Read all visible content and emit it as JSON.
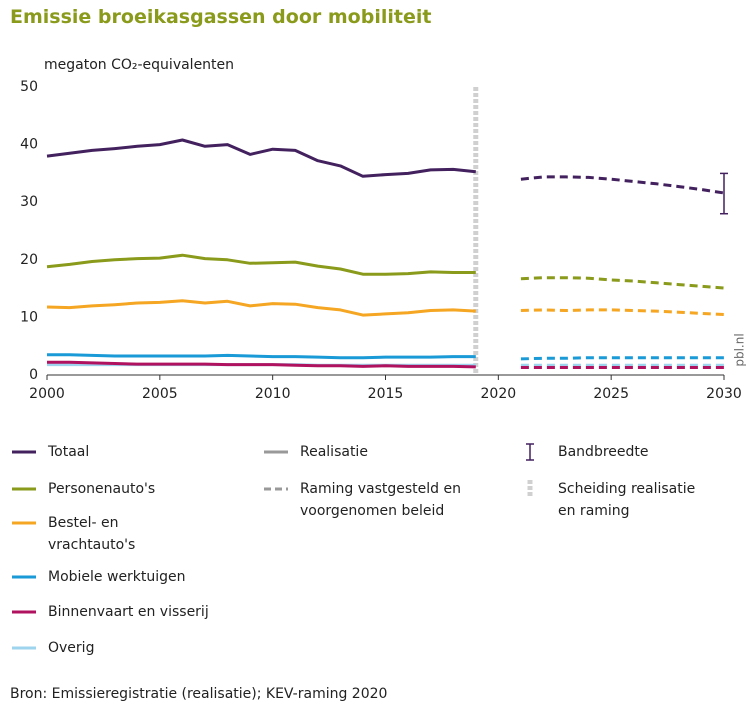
{
  "chart_data": {
    "type": "line",
    "title": "Emissie broeikasgassen door mobiliteit",
    "y_label": "megaton CO₂-equivalenten",
    "source": "Bron: Emissieregistratie (realisatie); KEV-raming 2020",
    "watermark": "pbl.nl",
    "x": [
      2000,
      2001,
      2002,
      2003,
      2004,
      2005,
      2006,
      2007,
      2008,
      2009,
      2010,
      2011,
      2012,
      2013,
      2014,
      2015,
      2016,
      2017,
      2018,
      2019,
      2020,
      2021,
      2022,
      2023,
      2024,
      2025,
      2026,
      2027,
      2028,
      2029,
      2030
    ],
    "series": [
      {
        "name": "Totaal",
        "color": "#42215e",
        "values": [
          38,
          38.5,
          39,
          39.3,
          39.7,
          40,
          40.8,
          39.7,
          40,
          38.3,
          39.2,
          39,
          37.2,
          36.3,
          34.5,
          34.8,
          35,
          35.6,
          35.7,
          35.3,
          null,
          null,
          null,
          null,
          null,
          null,
          null,
          null,
          null,
          null,
          null
        ],
        "projection": [
          null,
          null,
          null,
          null,
          null,
          null,
          null,
          null,
          null,
          null,
          null,
          null,
          null,
          null,
          null,
          null,
          null,
          null,
          null,
          null,
          null,
          34,
          34.4,
          34.4,
          34.3,
          34,
          33.6,
          33.2,
          32.7,
          32.2,
          31.6
        ]
      },
      {
        "name": "Personenauto's",
        "color": "#8a9a1b",
        "values": [
          18.8,
          19.2,
          19.7,
          20,
          20.2,
          20.3,
          20.8,
          20.2,
          20,
          19.4,
          19.5,
          19.6,
          18.9,
          18.4,
          17.5,
          17.5,
          17.6,
          17.9,
          17.8,
          17.8,
          null,
          null,
          null,
          null,
          null,
          null,
          null,
          null,
          null,
          null,
          null
        ],
        "projection": [
          null,
          null,
          null,
          null,
          null,
          null,
          null,
          null,
          null,
          null,
          null,
          null,
          null,
          null,
          null,
          null,
          null,
          null,
          null,
          null,
          null,
          16.7,
          16.9,
          16.9,
          16.8,
          16.5,
          16.3,
          16,
          15.7,
          15.4,
          15.1
        ]
      },
      {
        "name": "Bestel- en vrachtauto's",
        "color": "#f5a623",
        "values": [
          11.8,
          11.7,
          12,
          12.2,
          12.5,
          12.6,
          12.9,
          12.5,
          12.8,
          12,
          12.4,
          12.3,
          11.7,
          11.3,
          10.4,
          10.6,
          10.8,
          11.2,
          11.3,
          11.1,
          null,
          null,
          null,
          null,
          null,
          null,
          null,
          null,
          null,
          null,
          null
        ],
        "projection": [
          null,
          null,
          null,
          null,
          null,
          null,
          null,
          null,
          null,
          null,
          null,
          null,
          null,
          null,
          null,
          null,
          null,
          null,
          null,
          null,
          null,
          11.2,
          11.3,
          11.2,
          11.3,
          11.3,
          11.2,
          11.1,
          10.9,
          10.7,
          10.5
        ]
      },
      {
        "name": "Mobiele werktuigen",
        "color": "#1a9ad6",
        "values": [
          3.5,
          3.5,
          3.4,
          3.3,
          3.3,
          3.3,
          3.3,
          3.3,
          3.4,
          3.3,
          3.2,
          3.2,
          3.1,
          3,
          3,
          3.1,
          3.1,
          3.1,
          3.2,
          3.2,
          null,
          null,
          null,
          null,
          null,
          null,
          null,
          null,
          null,
          null,
          null
        ],
        "projection": [
          null,
          null,
          null,
          null,
          null,
          null,
          null,
          null,
          null,
          null,
          null,
          null,
          null,
          null,
          null,
          null,
          null,
          null,
          null,
          null,
          null,
          2.8,
          2.9,
          2.9,
          3,
          3,
          3,
          3,
          3,
          3,
          3
        ]
      },
      {
        "name": "Binnenvaart en visserij",
        "color": "#b0125f",
        "values": [
          2.2,
          2.2,
          2.1,
          2,
          1.9,
          1.9,
          1.9,
          1.9,
          1.8,
          1.8,
          1.8,
          1.7,
          1.6,
          1.6,
          1.5,
          1.6,
          1.5,
          1.5,
          1.5,
          1.4,
          null,
          null,
          null,
          null,
          null,
          null,
          null,
          null,
          null,
          null,
          null
        ],
        "projection": [
          null,
          null,
          null,
          null,
          null,
          null,
          null,
          null,
          null,
          null,
          null,
          null,
          null,
          null,
          null,
          null,
          null,
          null,
          null,
          null,
          null,
          1.3,
          1.3,
          1.3,
          1.3,
          1.3,
          1.3,
          1.3,
          1.3,
          1.3,
          1.3
        ]
      },
      {
        "name": "Overig",
        "color": "#9fd4ee",
        "values": [
          1.8,
          1.8,
          1.8,
          1.8,
          1.8,
          1.8,
          1.8,
          1.8,
          1.8,
          1.8,
          1.8,
          1.8,
          1.7,
          1.7,
          1.7,
          1.7,
          1.7,
          1.7,
          1.7,
          1.7,
          null,
          null,
          null,
          null,
          null,
          null,
          null,
          null,
          null,
          null,
          null
        ],
        "projection": [
          null,
          null,
          null,
          null,
          null,
          null,
          null,
          null,
          null,
          null,
          null,
          null,
          null,
          null,
          null,
          null,
          null,
          null,
          null,
          null,
          null,
          1.7,
          1.7,
          1.7,
          1.7,
          1.7,
          1.7,
          1.7,
          1.7,
          1.7,
          1.7
        ]
      }
    ],
    "line_styles": [
      {
        "name": "Realisatie",
        "color": "#999999",
        "dash": false
      },
      {
        "name": "Raming vastgesteld en voorgenomen beleid",
        "color": "#999999",
        "dash": true
      }
    ],
    "band": {
      "name": "Bandbreedte",
      "color": "#42215e",
      "x": 2030,
      "low": 28,
      "high": 35
    },
    "separator": {
      "name": "Scheiding realisatie en raming",
      "color": "#d0d0d0",
      "x": 2019
    },
    "xlim": [
      2000,
      2030
    ],
    "xticks": [
      2000,
      2005,
      2010,
      2015,
      2020,
      2025,
      2030
    ],
    "ylim": [
      0,
      50
    ],
    "yticks": [
      0,
      10,
      20,
      30,
      40,
      50
    ],
    "grid": false
  }
}
